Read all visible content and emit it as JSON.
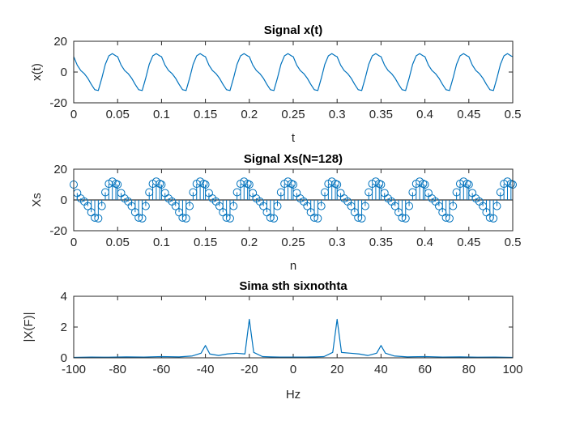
{
  "chart_data": [
    {
      "type": "line",
      "title": "Signal x(t)",
      "xlabel": "t",
      "ylabel": "x(t)",
      "xlim": [
        0,
        0.5
      ],
      "ylim": [
        -20,
        20
      ],
      "xticks": [
        0,
        0.05,
        0.1,
        0.15,
        0.2,
        0.25,
        0.3,
        0.35,
        0.4,
        0.45,
        0.5
      ],
      "yticks": [
        -20,
        0,
        20
      ],
      "grid": false,
      "color": "#0072BD",
      "series": [
        {
          "x": [
            0,
            0.004,
            0.008,
            0.012,
            0.016,
            0.02,
            0.024,
            0.028,
            0.032,
            0.036,
            0.04,
            0.044,
            0.048,
            0.05,
            0.054,
            0.058,
            0.062,
            0.066,
            0.07,
            0.074,
            0.078,
            0.082,
            0.086,
            0.09,
            0.094,
            0.098,
            0.1,
            0.104,
            0.108,
            0.112,
            0.116,
            0.12,
            0.124,
            0.128,
            0.132,
            0.136,
            0.14,
            0.144,
            0.148,
            0.15,
            0.154,
            0.158,
            0.162,
            0.166,
            0.17,
            0.174,
            0.178,
            0.182,
            0.186,
            0.19,
            0.194,
            0.198,
            0.2,
            0.204,
            0.208,
            0.212,
            0.216,
            0.22,
            0.224,
            0.228,
            0.232,
            0.236,
            0.24,
            0.244,
            0.248,
            0.25,
            0.254,
            0.258,
            0.262,
            0.266,
            0.27,
            0.274,
            0.278,
            0.282,
            0.286,
            0.29,
            0.294,
            0.298,
            0.3,
            0.304,
            0.308,
            0.312,
            0.316,
            0.32,
            0.324,
            0.328,
            0.332,
            0.336,
            0.34,
            0.344,
            0.348,
            0.35,
            0.354,
            0.358,
            0.362,
            0.366,
            0.37,
            0.374,
            0.378,
            0.382,
            0.386,
            0.39,
            0.394,
            0.398,
            0.4,
            0.404,
            0.408,
            0.412,
            0.416,
            0.42,
            0.424,
            0.428,
            0.432,
            0.436,
            0.44,
            0.444,
            0.448,
            0.45,
            0.454,
            0.458,
            0.462,
            0.466,
            0.47,
            0.474,
            0.478,
            0.482,
            0.486,
            0.49,
            0.494,
            0.498,
            0.5
          ],
          "y": [
            10,
            4.5,
            1,
            -1,
            -4,
            -8,
            -11.5,
            -12,
            -4,
            5,
            10.5,
            12,
            10.5,
            10,
            4.5,
            1,
            -1,
            -4,
            -8,
            -11.5,
            -12,
            -4,
            5,
            10.5,
            12,
            10.5,
            10,
            4.5,
            1,
            -1,
            -4,
            -8,
            -11.5,
            -12,
            -4,
            5,
            10.5,
            12,
            10.5,
            10,
            4.5,
            1,
            -1,
            -4,
            -8,
            -11.5,
            -12,
            -4,
            5,
            10.5,
            12,
            10.5,
            10,
            4.5,
            1,
            -1,
            -4,
            -8,
            -11.5,
            -12,
            -4,
            5,
            10.5,
            12,
            10.5,
            10,
            4.5,
            1,
            -1,
            -4,
            -8,
            -11.5,
            -12,
            -4,
            5,
            10.5,
            12,
            10.5,
            10,
            4.5,
            1,
            -1,
            -4,
            -8,
            -11.5,
            -12,
            -4,
            5,
            10.5,
            12,
            10.5,
            10,
            4.5,
            1,
            -1,
            -4,
            -8,
            -11.5,
            -12,
            -4,
            5,
            10.5,
            12,
            10.5,
            10,
            4.5,
            1,
            -1,
            -4,
            -8,
            -11.5,
            -12,
            -4,
            5,
            10.5,
            12,
            10.5,
            10,
            4.5,
            1,
            -1,
            -4,
            -8,
            -11.5,
            -12,
            -4,
            5,
            10.5,
            12,
            10.5,
            10
          ]
        }
      ]
    },
    {
      "type": "stem",
      "title": "Signal Xs(N=128)",
      "xlabel": "n",
      "ylabel": "Xs",
      "xlim": [
        0,
        0.5
      ],
      "ylim": [
        -20,
        20
      ],
      "xticks": [
        0,
        0.05,
        0.1,
        0.15,
        0.2,
        0.25,
        0.3,
        0.35,
        0.4,
        0.45,
        0.5
      ],
      "yticks": [
        -20,
        0,
        20
      ],
      "grid": false,
      "color": "#0072BD",
      "series": [
        {
          "x": [
            0,
            0.004,
            0.008,
            0.012,
            0.016,
            0.02,
            0.024,
            0.028,
            0.032,
            0.036,
            0.04,
            0.044,
            0.048,
            0.05,
            0.054,
            0.058,
            0.062,
            0.066,
            0.07,
            0.074,
            0.078,
            0.082,
            0.086,
            0.09,
            0.094,
            0.098,
            0.1,
            0.104,
            0.108,
            0.112,
            0.116,
            0.12,
            0.124,
            0.128,
            0.132,
            0.136,
            0.14,
            0.144,
            0.148,
            0.15,
            0.154,
            0.158,
            0.162,
            0.166,
            0.17,
            0.174,
            0.178,
            0.182,
            0.186,
            0.19,
            0.194,
            0.198,
            0.2,
            0.204,
            0.208,
            0.212,
            0.216,
            0.22,
            0.224,
            0.228,
            0.232,
            0.236,
            0.24,
            0.244,
            0.248,
            0.25,
            0.254,
            0.258,
            0.262,
            0.266,
            0.27,
            0.274,
            0.278,
            0.282,
            0.286,
            0.29,
            0.294,
            0.298,
            0.3,
            0.304,
            0.308,
            0.312,
            0.316,
            0.32,
            0.324,
            0.328,
            0.332,
            0.336,
            0.34,
            0.344,
            0.348,
            0.35,
            0.354,
            0.358,
            0.362,
            0.366,
            0.37,
            0.374,
            0.378,
            0.382,
            0.386,
            0.39,
            0.394,
            0.398,
            0.4,
            0.404,
            0.408,
            0.412,
            0.416,
            0.42,
            0.424,
            0.428,
            0.432,
            0.436,
            0.44,
            0.444,
            0.448,
            0.45,
            0.454,
            0.458,
            0.462,
            0.466,
            0.47,
            0.474,
            0.478,
            0.482,
            0.486,
            0.49,
            0.494,
            0.498,
            0.5
          ],
          "y": [
            10,
            4.5,
            1,
            -1,
            -4,
            -8,
            -11.5,
            -12,
            -4,
            5,
            10.5,
            12,
            10.5,
            10,
            4.5,
            1,
            -1,
            -4,
            -8,
            -11.5,
            -12,
            -4,
            5,
            10.5,
            12,
            10.5,
            10,
            4.5,
            1,
            -1,
            -4,
            -8,
            -11.5,
            -12,
            -4,
            5,
            10.5,
            12,
            10.5,
            10,
            4.5,
            1,
            -1,
            -4,
            -8,
            -11.5,
            -12,
            -4,
            5,
            10.5,
            12,
            10.5,
            10,
            4.5,
            1,
            -1,
            -4,
            -8,
            -11.5,
            -12,
            -4,
            5,
            10.5,
            12,
            10.5,
            10,
            4.5,
            1,
            -1,
            -4,
            -8,
            -11.5,
            -12,
            -4,
            5,
            10.5,
            12,
            10.5,
            10,
            4.5,
            1,
            -1,
            -4,
            -8,
            -11.5,
            -12,
            -4,
            5,
            10.5,
            12,
            10.5,
            10,
            4.5,
            1,
            -1,
            -4,
            -8,
            -11.5,
            -12,
            -4,
            5,
            10.5,
            12,
            10.5,
            10,
            4.5,
            1,
            -1,
            -4,
            -8,
            -11.5,
            -12,
            -4,
            5,
            10.5,
            12,
            10.5,
            10,
            4.5,
            1,
            -1,
            -4,
            -8,
            -11.5,
            -12,
            -4,
            5,
            10.5,
            12,
            10.5,
            10
          ]
        }
      ]
    },
    {
      "type": "line",
      "title": "Sima sth sixnothta",
      "xlabel": "Hz",
      "ylabel": "|X(F)|",
      "xlim": [
        -100,
        100
      ],
      "ylim": [
        0,
        4
      ],
      "xticks": [
        -100,
        -80,
        -60,
        -40,
        -20,
        0,
        20,
        40,
        60,
        80,
        100
      ],
      "yticks": [
        0,
        2,
        4
      ],
      "grid": false,
      "color": "#0072BD",
      "series": [
        {
          "x": [
            -100,
            -92,
            -84,
            -76,
            -68,
            -60,
            -52,
            -46,
            -42,
            -40,
            -38,
            -34,
            -30,
            -26,
            -22,
            -20,
            -18,
            -14,
            -10,
            -6,
            -2,
            2,
            6,
            10,
            14,
            18,
            20,
            22,
            26,
            30,
            34,
            38,
            40,
            42,
            46,
            52,
            60,
            68,
            76,
            84,
            92,
            100
          ],
          "y": [
            0.03,
            0.05,
            0.04,
            0.06,
            0.05,
            0.08,
            0.06,
            0.12,
            0.3,
            0.8,
            0.25,
            0.15,
            0.25,
            0.3,
            0.25,
            2.5,
            0.35,
            0.08,
            0.06,
            0.05,
            0.05,
            0.05,
            0.05,
            0.06,
            0.08,
            0.35,
            2.5,
            0.35,
            0.3,
            0.25,
            0.15,
            0.3,
            0.8,
            0.3,
            0.12,
            0.06,
            0.08,
            0.05,
            0.06,
            0.04,
            0.05,
            0.03
          ]
        }
      ]
    }
  ]
}
